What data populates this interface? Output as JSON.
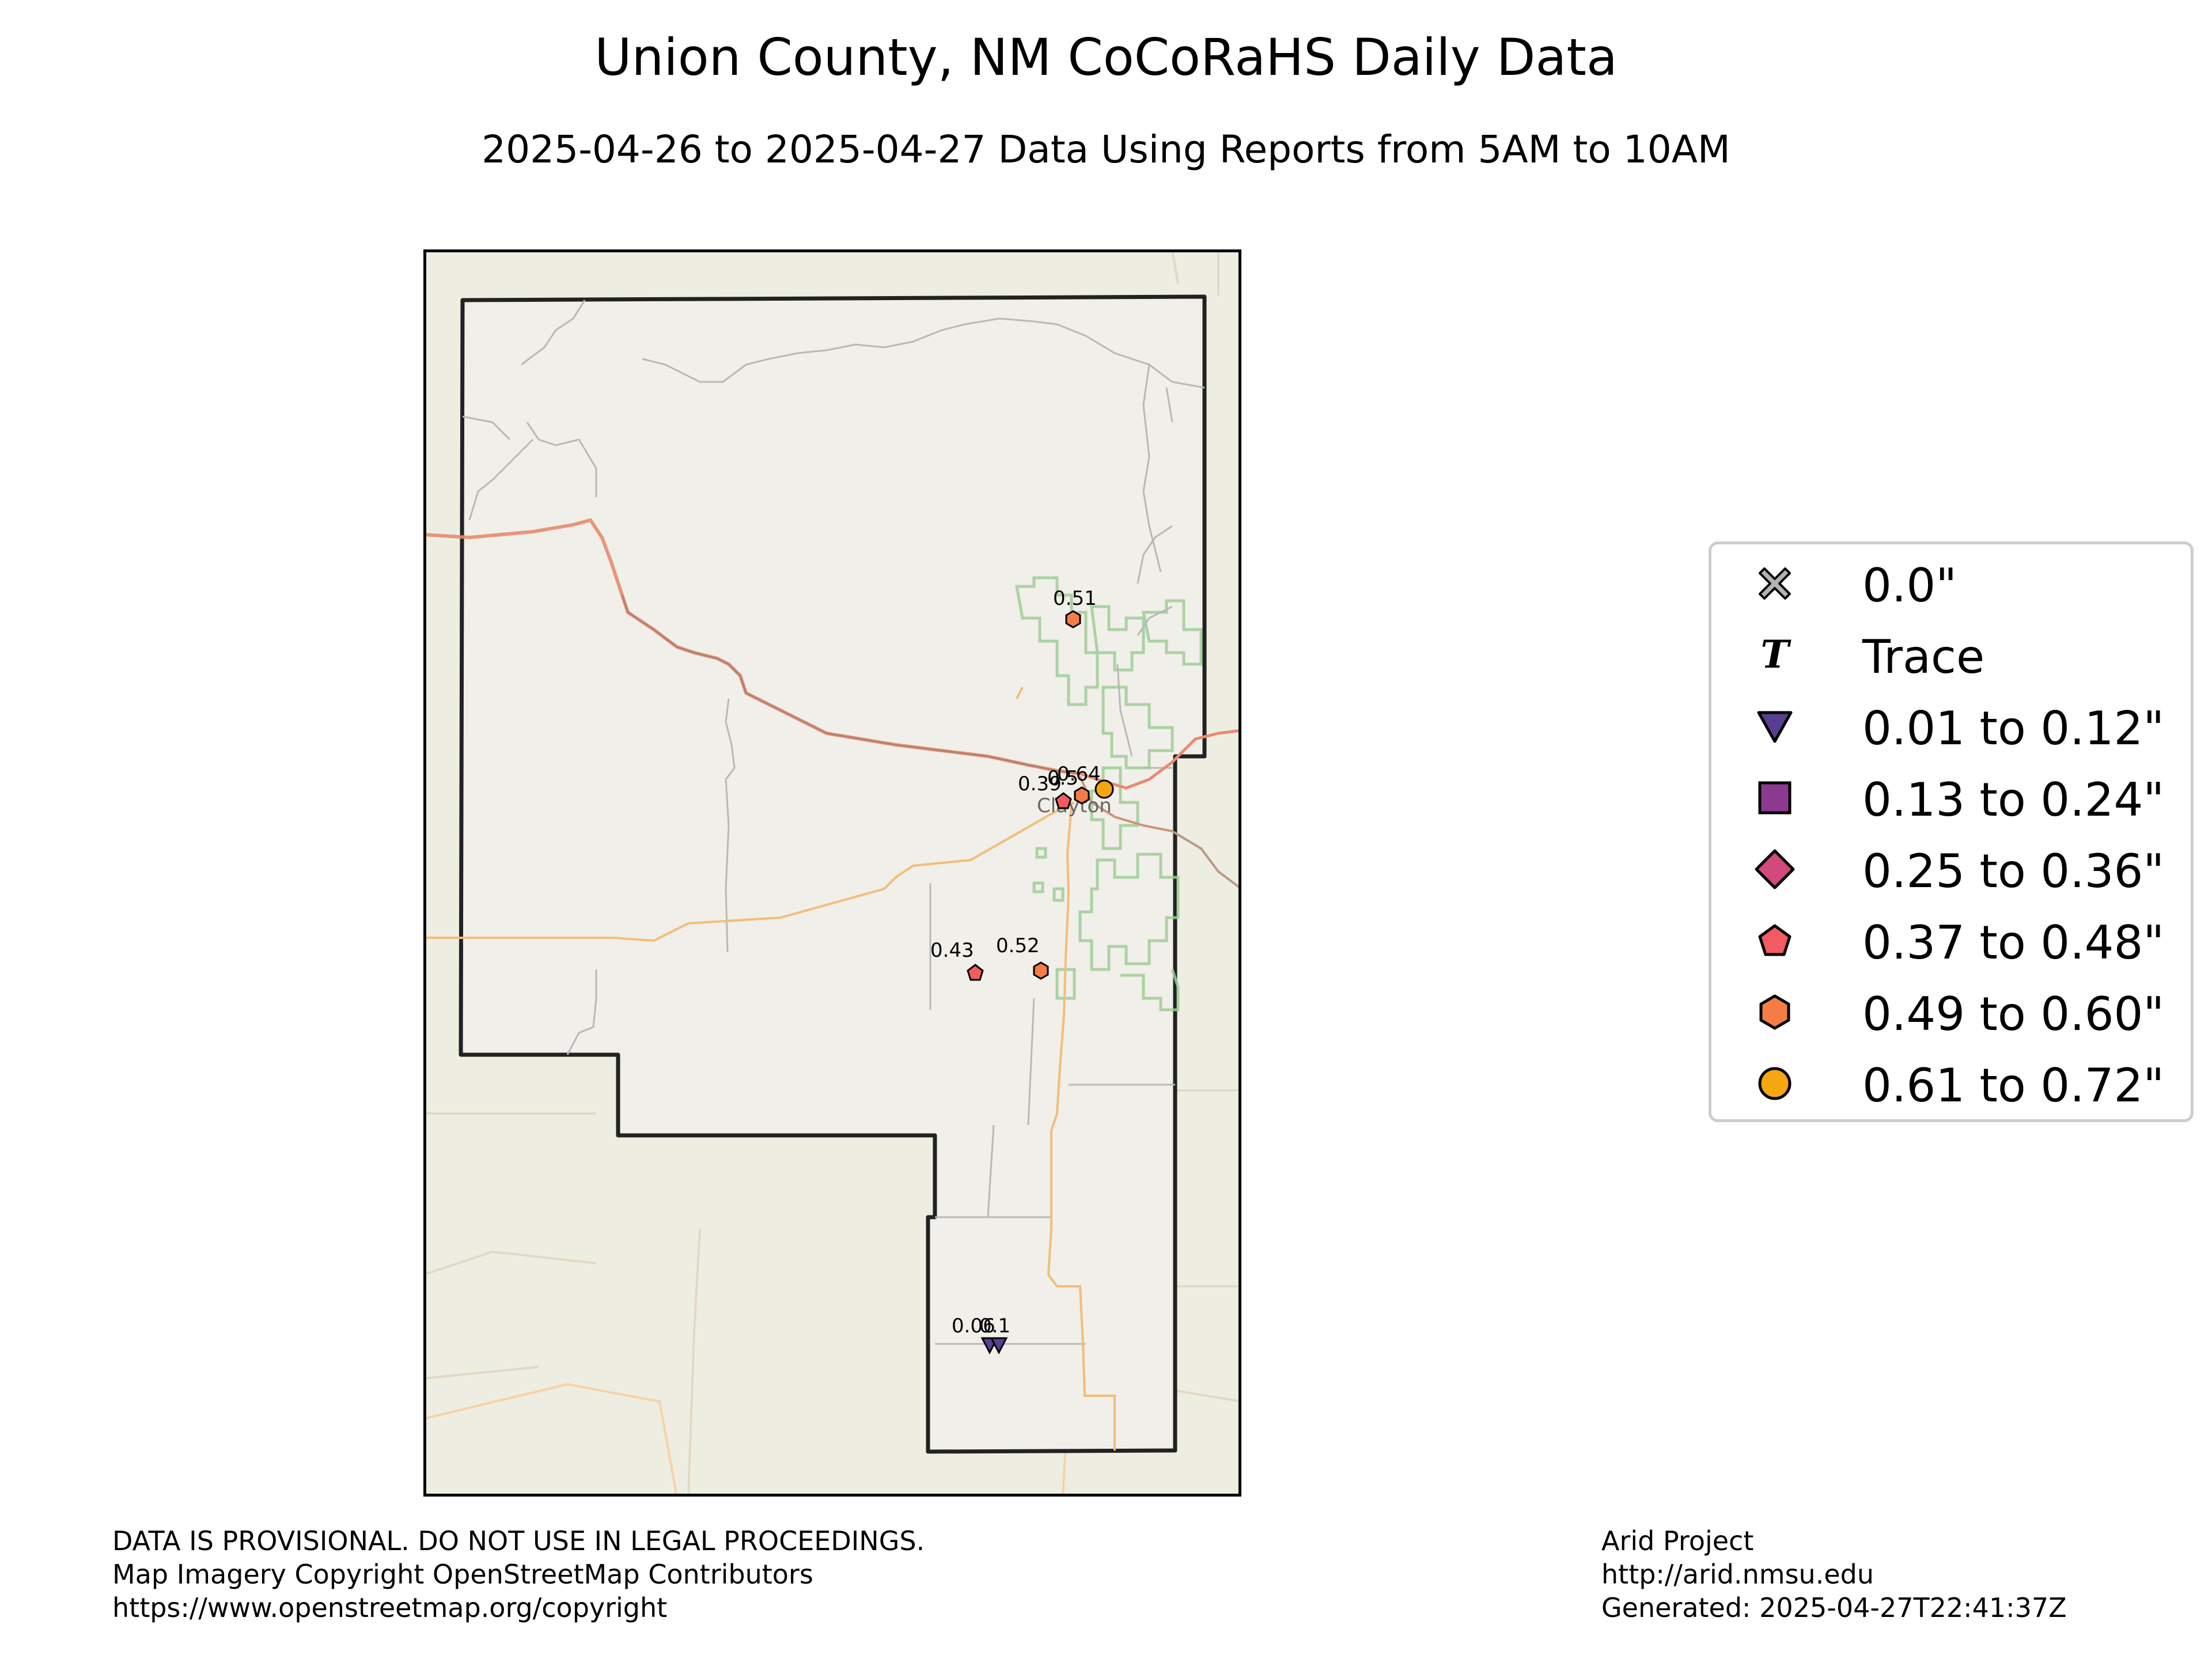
{
  "title": "Union County, NM CoCoRaHS Daily Data",
  "subtitle": "2025-04-26 to 2025-04-27 Data Using Reports from 5AM to 10AM",
  "map": {
    "town_label": "Clayton",
    "stations": [
      {
        "value": "0.51",
        "category": "0.49 to 0.60\""
      },
      {
        "value": "0.39",
        "category": "0.37 to 0.48\""
      },
      {
        "value": "0.5",
        "category": "0.49 to 0.60\""
      },
      {
        "value": "0.64",
        "category": "0.61 to 0.72\""
      },
      {
        "value": "0.43",
        "category": "0.37 to 0.48\""
      },
      {
        "value": "0.52",
        "category": "0.49 to 0.60\""
      },
      {
        "value": "0.06",
        "category": "0.01 to 0.12\""
      },
      {
        "value": "0.1",
        "category": "0.01 to 0.12\""
      }
    ],
    "colors": {
      "county_border": "#222222",
      "basemap_bg": "#edeee1",
      "county_fill": "#f1efe9",
      "highway": "#e88a6f",
      "state_road": "#f2bd7a",
      "minor_road": "#b8b8b8",
      "grassland": "#9fce97"
    }
  },
  "legend": {
    "items": [
      {
        "label": "0.0\"",
        "icon": "x-icon",
        "color": "#b3b3b3"
      },
      {
        "label": "Trace",
        "icon": "trace-t-icon",
        "color": "#000000"
      },
      {
        "label": "0.01 to 0.12\"",
        "icon": "triangle-down-icon",
        "color": "#5a3f91"
      },
      {
        "label": "0.13 to 0.24\"",
        "icon": "square-icon",
        "color": "#8c3a8f"
      },
      {
        "label": "0.25 to 0.36\"",
        "icon": "diamond-icon",
        "color": "#d2497e"
      },
      {
        "label": "0.37 to 0.48\"",
        "icon": "pentagon-icon",
        "color": "#f25b61"
      },
      {
        "label": "0.49 to 0.60\"",
        "icon": "hexagon-icon",
        "color": "#f47d45"
      },
      {
        "label": "0.61 to 0.72\"",
        "icon": "circle-icon",
        "color": "#f6a70f"
      }
    ]
  },
  "footer": {
    "left": [
      "DATA IS PROVISIONAL. DO NOT USE IN LEGAL PROCEEDINGS.",
      "Map Imagery Copyright OpenStreetMap Contributors",
      "https://www.openstreetmap.org/copyright"
    ],
    "right": [
      "Arid Project",
      "http://arid.nmsu.edu",
      "Generated: 2025-04-27T22:41:37Z"
    ]
  }
}
